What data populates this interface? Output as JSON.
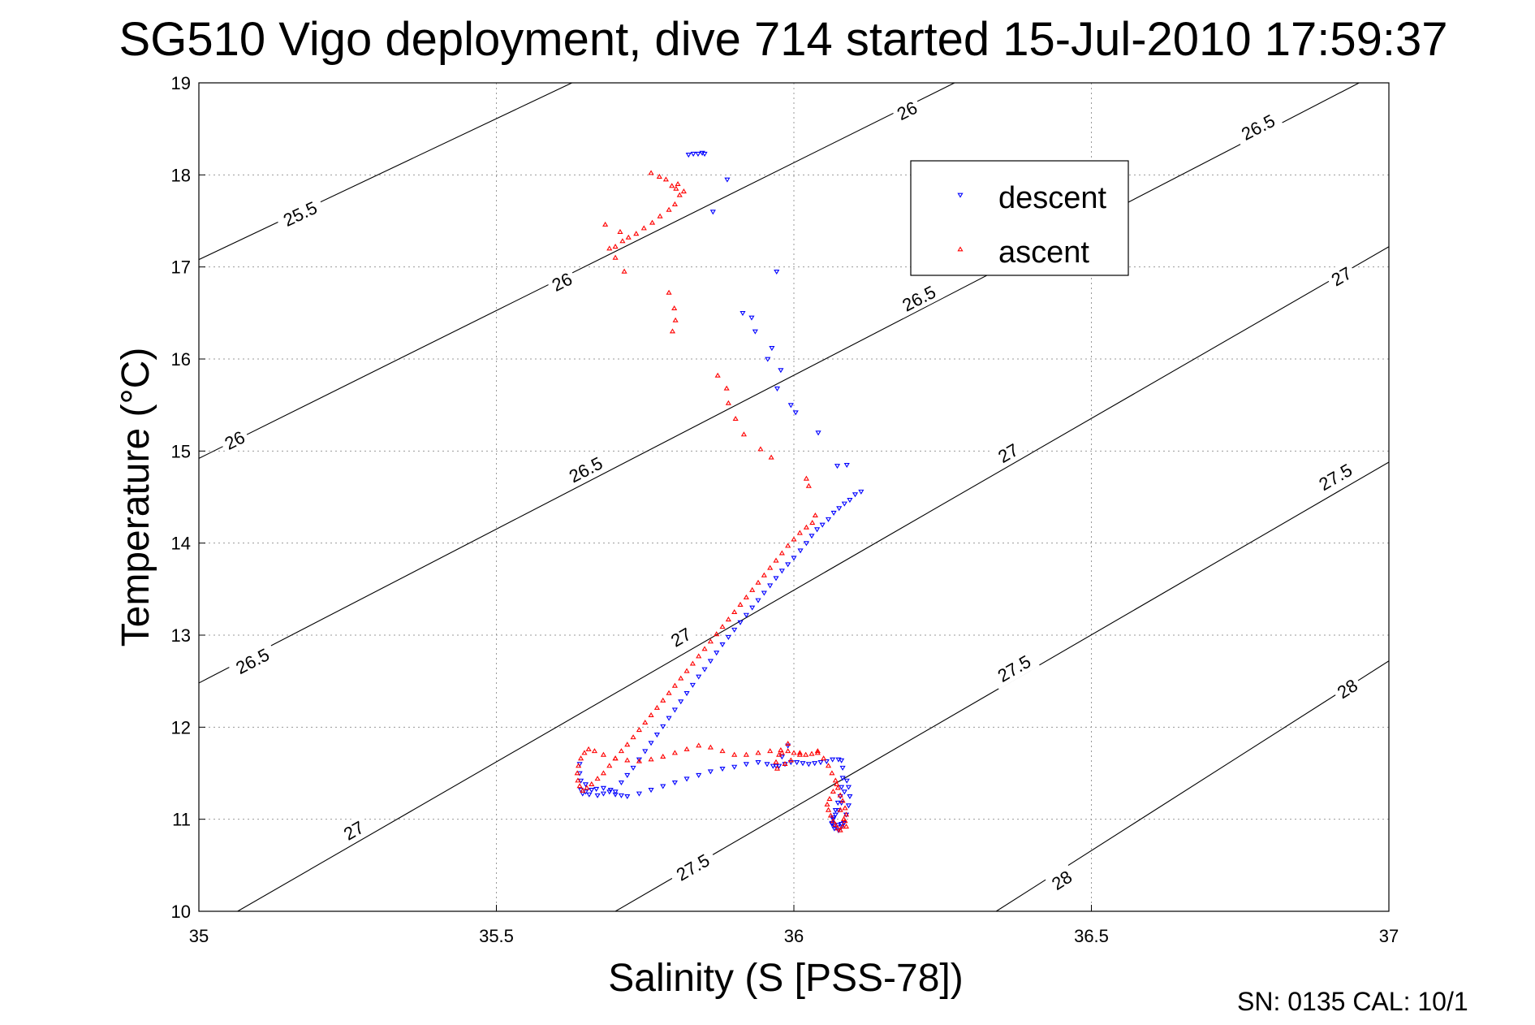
{
  "chart_data": {
    "type": "scatter",
    "title": "SG510 Vigo deployment, dive 714 started 15-Jul-2010 17:59:37",
    "xlabel": "Salinity (S [PSS-78])",
    "ylabel": "Temperature (°C)",
    "xlim": [
      35,
      37
    ],
    "ylim": [
      10,
      19
    ],
    "xticks": [
      "35",
      "35.5",
      "36",
      "36.5",
      "37"
    ],
    "yticks": [
      "10",
      "11",
      "12",
      "13",
      "14",
      "15",
      "16",
      "17",
      "18",
      "19"
    ],
    "grid": true,
    "legend_position": "top-right",
    "contours": [
      {
        "label": "25.5",
        "line": [
          [
            35.0,
            17.08
          ],
          [
            35.627,
            19.0
          ]
        ],
        "labels_at": [
          [
            35.17,
            17.58
          ]
        ]
      },
      {
        "label": "26",
        "line": [
          [
            35.0,
            14.92
          ],
          [
            36.27,
            19.0
          ]
        ],
        "labels_at": [
          [
            35.06,
            15.12
          ],
          [
            35.61,
            16.84
          ],
          [
            36.19,
            18.7
          ]
        ]
      },
      {
        "label": "26.5",
        "line": [
          [
            35.0,
            12.48
          ],
          [
            36.95,
            19.0
          ]
        ],
        "labels_at": [
          [
            35.09,
            12.72
          ],
          [
            35.65,
            14.8
          ],
          [
            36.21,
            16.66
          ],
          [
            36.78,
            18.52
          ]
        ]
      },
      {
        "label": "27",
        "line": [
          [
            35.065,
            10.0
          ],
          [
            37.0,
            17.22
          ]
        ],
        "labels_at": [
          [
            35.26,
            10.88
          ],
          [
            35.81,
            12.98
          ],
          [
            36.36,
            14.98
          ],
          [
            36.92,
            16.9
          ]
        ]
      },
      {
        "label": "27.5",
        "line": [
          [
            35.7,
            10.0
          ],
          [
            37.0,
            14.88
          ]
        ],
        "labels_at": [
          [
            35.83,
            10.48
          ],
          [
            36.37,
            12.64
          ],
          [
            36.91,
            14.72
          ]
        ]
      },
      {
        "label": "28",
        "line": [
          [
            36.34,
            10.0
          ],
          [
            37.0,
            12.72
          ]
        ],
        "labels_at": [
          [
            36.45,
            10.34
          ],
          [
            36.93,
            12.42
          ]
        ]
      }
    ],
    "series": [
      {
        "name": "descent",
        "color": "#0000ff",
        "marker": "triangle-down",
        "x": [
          35.823,
          35.831,
          35.839,
          35.846,
          35.85,
          35.888,
          35.864,
          35.971,
          35.914,
          35.935,
          35.929,
          35.963,
          35.956,
          35.978,
          35.972,
          35.995,
          36.003,
          36.041,
          36.073,
          36.089,
          36.113,
          36.103,
          36.094,
          36.085,
          36.076,
          36.067,
          36.058,
          36.048,
          36.039,
          36.03,
          36.021,
          36.011,
          36.0,
          35.99,
          35.98,
          35.97,
          35.96,
          35.95,
          35.94,
          35.93,
          35.92,
          35.91,
          35.9,
          35.89,
          35.88,
          35.87,
          35.86,
          35.85,
          35.84,
          35.83,
          35.82,
          35.81,
          35.8,
          35.79,
          35.78,
          35.77,
          35.76,
          35.75,
          35.74,
          35.73,
          35.72,
          35.71,
          35.7,
          35.69,
          35.68,
          35.67,
          35.66,
          35.65,
          35.642,
          35.64,
          35.64,
          35.642,
          35.645,
          35.65,
          35.656,
          35.668,
          35.68,
          35.692,
          35.7,
          35.71,
          35.72,
          35.74,
          35.76,
          35.78,
          35.8,
          35.82,
          35.84,
          35.86,
          35.88,
          35.9,
          35.92,
          35.94,
          35.955,
          35.965,
          35.975,
          35.985,
          35.995,
          36.005,
          36.015,
          36.025,
          36.035,
          36.045,
          36.055,
          36.065,
          36.075,
          36.08,
          36.082,
          36.082,
          36.08,
          36.078,
          36.074,
          36.07,
          36.066,
          36.064,
          36.068,
          36.075,
          36.08,
          36.084,
          36.088,
          36.092,
          36.094,
          36.092,
          36.089,
          36.085,
          36.08,
          36.075,
          36.07,
          36.066,
          36.064,
          36.068,
          36.074,
          36.08,
          36.084,
          35.99,
          35.98,
          35.97
        ],
        "y": [
          18.22,
          18.23,
          18.23,
          18.24,
          18.23,
          17.95,
          17.6,
          16.95,
          16.5,
          16.3,
          16.45,
          16.12,
          16.0,
          15.88,
          15.68,
          15.5,
          15.42,
          15.2,
          14.84,
          14.85,
          14.56,
          14.53,
          14.47,
          14.43,
          14.38,
          14.33,
          14.26,
          14.2,
          14.15,
          14.08,
          14.0,
          13.92,
          13.84,
          13.77,
          13.7,
          13.62,
          13.54,
          13.46,
          13.38,
          13.3,
          13.22,
          13.14,
          13.06,
          12.98,
          12.9,
          12.81,
          12.72,
          12.63,
          12.55,
          12.46,
          12.37,
          12.28,
          12.19,
          12.1,
          12.01,
          11.92,
          11.83,
          11.74,
          11.65,
          11.56,
          11.48,
          11.4,
          11.3,
          11.3,
          11.28,
          11.26,
          11.32,
          11.38,
          11.42,
          11.5,
          11.6,
          11.32,
          11.28,
          11.3,
          11.27,
          11.33,
          11.34,
          11.32,
          11.27,
          11.26,
          11.25,
          11.28,
          11.32,
          11.36,
          11.4,
          11.44,
          11.48,
          11.52,
          11.55,
          11.57,
          11.6,
          11.62,
          11.6,
          11.58,
          11.58,
          11.6,
          11.62,
          11.62,
          11.61,
          11.6,
          11.61,
          11.62,
          11.63,
          11.65,
          11.65,
          11.64,
          11.56,
          11.45,
          11.35,
          11.25,
          11.18,
          11.1,
          11.02,
          10.95,
          10.9,
          10.88,
          10.92,
          10.96,
          11.05,
          11.15,
          11.25,
          11.35,
          11.42,
          11.3,
          11.18,
          11.1,
          11.05,
          11.0,
          10.96,
          10.93,
          10.94,
          10.95,
          10.96,
          11.8,
          11.68,
          11.58
        ]
      },
      {
        "name": "ascent",
        "color": "#ff0000",
        "marker": "triangle-up",
        "x": [
          35.69,
          35.7,
          35.712,
          35.722,
          35.735,
          35.748,
          35.762,
          35.775,
          35.79,
          35.8,
          35.808,
          35.815,
          35.795,
          35.805,
          35.802,
          35.785,
          35.774,
          35.76,
          35.683,
          35.708,
          35.7,
          35.715,
          35.79,
          35.799,
          35.801,
          35.796,
          35.872,
          35.887,
          35.89,
          35.902,
          35.916,
          35.944,
          35.962,
          36.021,
          36.025,
          36.036,
          36.031,
          36.021,
          36.01,
          36.0,
          35.99,
          35.98,
          35.97,
          35.96,
          35.95,
          35.94,
          35.93,
          35.92,
          35.91,
          35.9,
          35.89,
          35.88,
          35.87,
          35.86,
          35.85,
          35.84,
          35.83,
          35.82,
          35.81,
          35.8,
          35.79,
          35.78,
          35.77,
          35.76,
          35.75,
          35.74,
          35.73,
          35.72,
          35.71,
          35.7,
          35.69,
          35.68,
          35.67,
          35.66,
          35.652,
          35.645,
          35.64,
          35.637,
          35.636,
          35.638,
          35.642,
          35.648,
          35.655,
          35.665,
          35.68,
          35.7,
          35.72,
          35.74,
          35.76,
          35.78,
          35.8,
          35.82,
          35.84,
          35.86,
          35.88,
          35.9,
          35.92,
          35.94,
          35.96,
          35.978,
          35.99,
          36.0,
          36.01,
          36.02,
          36.03,
          36.04,
          36.05,
          36.058,
          36.064,
          36.07,
          36.074,
          36.078,
          36.082,
          36.086,
          36.088,
          36.086,
          36.082,
          36.078,
          36.074,
          36.07,
          36.066,
          36.062,
          36.058,
          36.056,
          36.06,
          36.066,
          36.072,
          36.078,
          36.084,
          36.088,
          35.99,
          35.98,
          35.97,
          35.972,
          35.985,
          35.995,
          35.975,
          36.01,
          36.04
        ],
        "y": [
          17.2,
          17.22,
          17.28,
          17.32,
          17.36,
          17.42,
          17.48,
          17.55,
          17.62,
          17.68,
          17.78,
          17.82,
          17.88,
          17.9,
          17.85,
          17.95,
          17.98,
          18.02,
          17.46,
          17.38,
          17.1,
          16.95,
          16.72,
          16.55,
          16.42,
          16.3,
          15.82,
          15.68,
          15.52,
          15.35,
          15.18,
          15.02,
          14.93,
          14.7,
          14.62,
          14.3,
          14.22,
          14.17,
          14.11,
          14.04,
          13.97,
          13.89,
          13.81,
          13.73,
          13.65,
          13.57,
          13.49,
          13.41,
          13.33,
          13.25,
          13.17,
          13.09,
          13.01,
          12.93,
          12.85,
          12.77,
          12.69,
          12.61,
          12.53,
          12.45,
          12.37,
          12.29,
          12.21,
          12.13,
          12.05,
          11.97,
          11.89,
          11.81,
          11.74,
          11.66,
          11.58,
          11.5,
          11.44,
          11.38,
          11.34,
          11.31,
          11.36,
          11.42,
          11.5,
          11.58,
          11.66,
          11.72,
          11.76,
          11.74,
          11.7,
          11.66,
          11.64,
          11.63,
          11.65,
          11.68,
          11.72,
          11.76,
          11.8,
          11.78,
          11.74,
          11.7,
          11.7,
          11.72,
          11.74,
          11.75,
          11.74,
          11.72,
          11.7,
          11.7,
          11.71,
          11.72,
          11.66,
          11.58,
          11.5,
          11.42,
          11.34,
          11.26,
          11.2,
          11.12,
          11.05,
          10.98,
          10.92,
          10.88,
          10.9,
          10.94,
          10.98,
          11.04,
          11.1,
          11.16,
          11.22,
          11.3,
          11.38,
          11.1,
          11.0,
          10.92,
          11.82,
          11.72,
          11.62,
          11.55,
          11.6,
          11.64,
          11.7,
          11.72,
          11.74
        ]
      }
    ]
  },
  "legend": {
    "descent_label": "descent",
    "ascent_label": "ascent"
  },
  "footer": {
    "text": "SN: 0135  CAL: 10/1"
  }
}
